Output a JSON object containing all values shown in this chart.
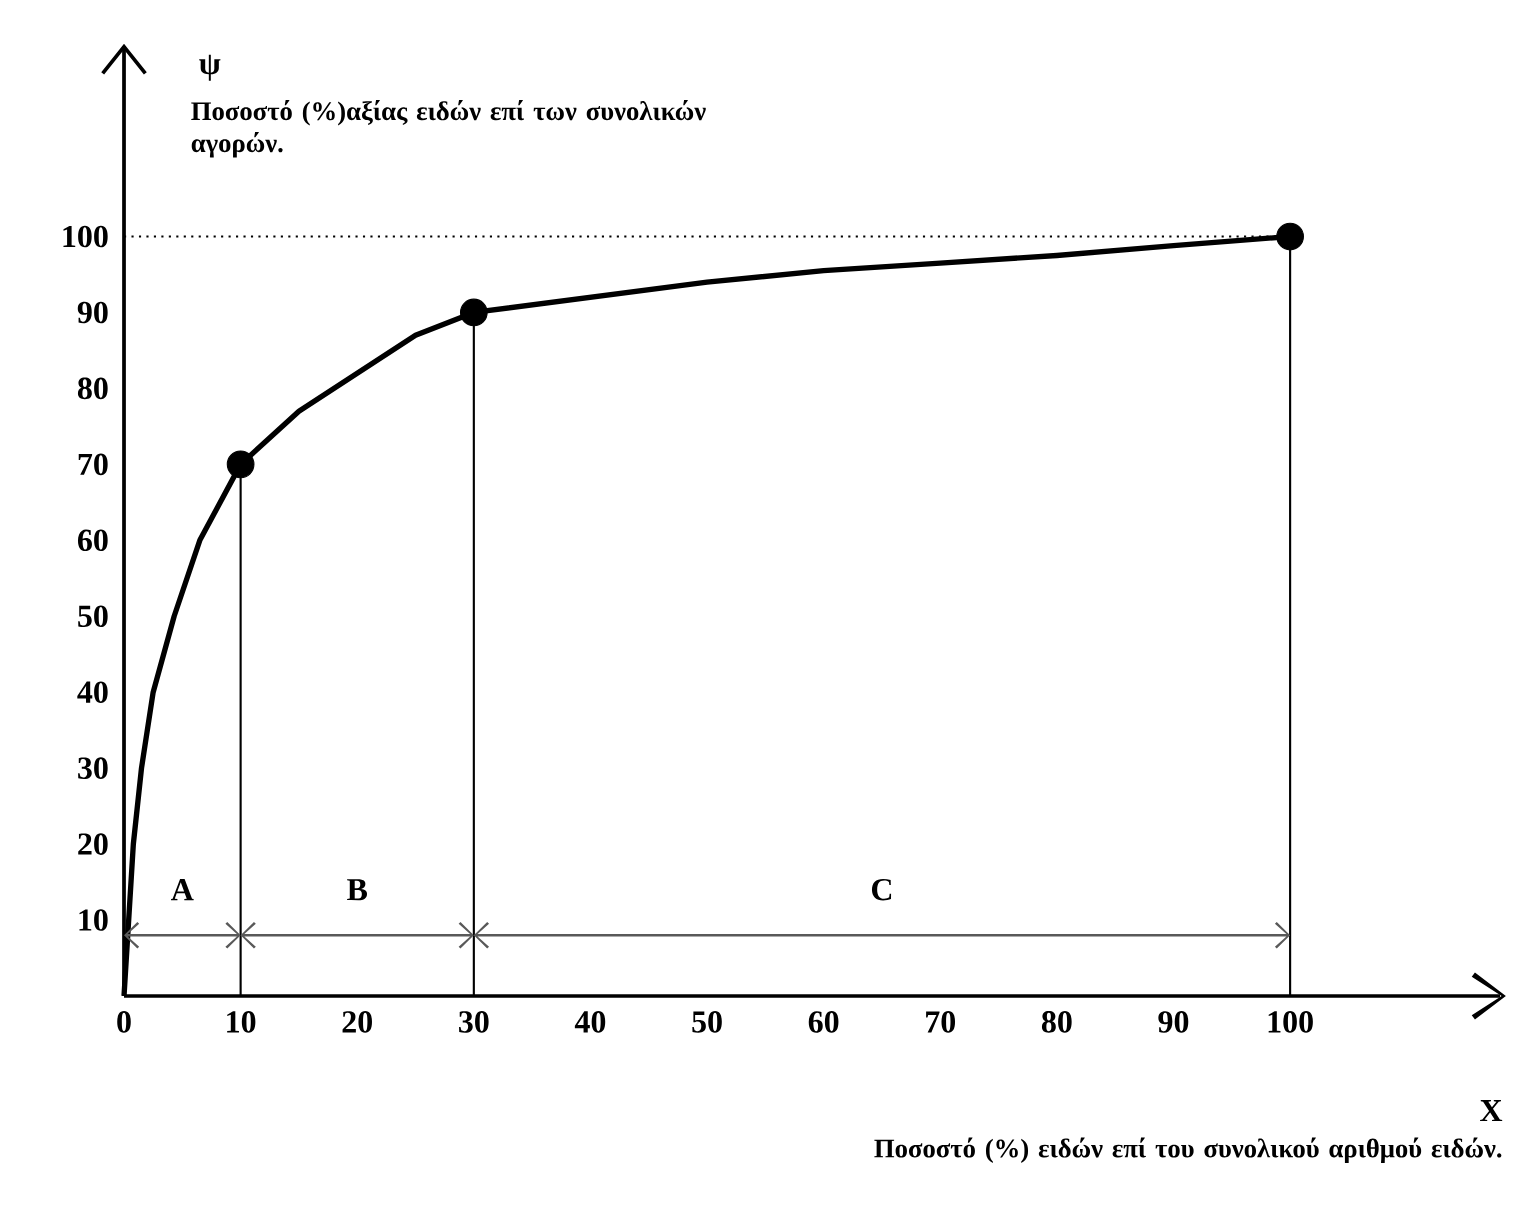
{
  "chart_data": {
    "type": "line",
    "title": "Ποσοστό (%)αξίας ειδών επί των συνολικών αγορών.",
    "ylabel": "ψ",
    "xlabel": "X",
    "annotations": [
      "Ποσοστό (%) ειδών επί του συνολικού αριθμού ειδών.",
      "A",
      "B",
      "C"
    ],
    "series": [
      {
        "color": "#000000",
        "marker": "none",
        "x": [
          0,
          0.8,
          1.5,
          2.5,
          4.3,
          6.5,
          10,
          15,
          20,
          25,
          30,
          40,
          50,
          60,
          70,
          80,
          90,
          100
        ],
        "values": [
          0,
          20,
          30,
          40,
          50,
          60,
          70,
          77,
          82,
          87,
          90,
          92,
          94,
          95.5,
          96.5,
          97.5,
          98.8,
          100
        ]
      },
      {
        "type": "scatter",
        "color": "#000000",
        "marker": "circle",
        "x": [
          10,
          30,
          100
        ],
        "values": [
          70,
          90,
          100
        ]
      }
    ],
    "xlim": [
      0,
      118
    ],
    "ylim": [
      0,
      125
    ],
    "xticks": [
      0,
      10,
      20,
      30,
      40,
      50,
      60,
      70,
      80,
      90,
      100
    ],
    "yticks": [
      10,
      20,
      30,
      40,
      50,
      60,
      70,
      80,
      90,
      100
    ],
    "ref_lines": [
      {
        "axis": "y",
        "value": 100,
        "line_style": "dotted"
      },
      {
        "axis": "x",
        "value": 10,
        "line_style": "solid"
      },
      {
        "axis": "x",
        "value": 30,
        "line_style": "solid"
      },
      {
        "axis": "x",
        "value": 100,
        "line_style": "solid"
      }
    ]
  }
}
